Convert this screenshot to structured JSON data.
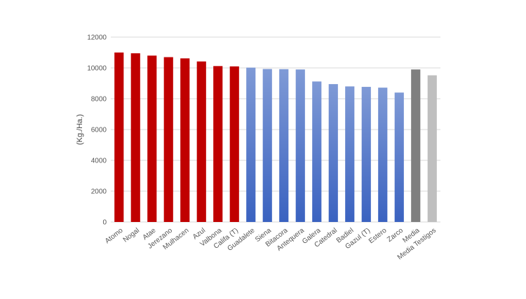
{
  "chart_data": {
    "type": "bar",
    "title": "",
    "xlabel": "",
    "ylabel": "(Kg./Ha.)",
    "ylim": [
      0,
      12000
    ],
    "yticks": [
      0,
      2000,
      4000,
      6000,
      8000,
      10000,
      12000
    ],
    "grid": true,
    "legend": "none",
    "categories": [
      "Atomo",
      "Nogal",
      "Atae",
      "Jerezano",
      "Mulhacen",
      "Azul",
      "Valbona",
      "Califa (T)",
      "Guadalete",
      "Siena",
      "Bitacora",
      "Antequera",
      "Galera",
      "Catedral",
      "Badiel",
      "Gazul (T)",
      "Estero",
      "Zarco",
      "Media",
      "Media Testigos"
    ],
    "values": [
      11000,
      10950,
      10800,
      10700,
      10620,
      10420,
      10120,
      10100,
      10020,
      9930,
      9920,
      9900,
      9120,
      8950,
      8800,
      8770,
      8720,
      8400,
      9900,
      9520
    ],
    "bar_groups": [
      "red",
      "red",
      "red",
      "red",
      "red",
      "red",
      "red",
      "red",
      "blue",
      "blue",
      "blue",
      "blue",
      "blue",
      "blue",
      "blue",
      "blue",
      "blue",
      "blue",
      "darkgray",
      "lightgray"
    ],
    "colors": {
      "red": "#c00000",
      "blue_top": "#7f9ad6",
      "blue_bottom": "#3a62c0",
      "darkgray": "#7f7f7f",
      "lightgray": "#bfbfbf",
      "grid": "#d9d9d9"
    }
  }
}
